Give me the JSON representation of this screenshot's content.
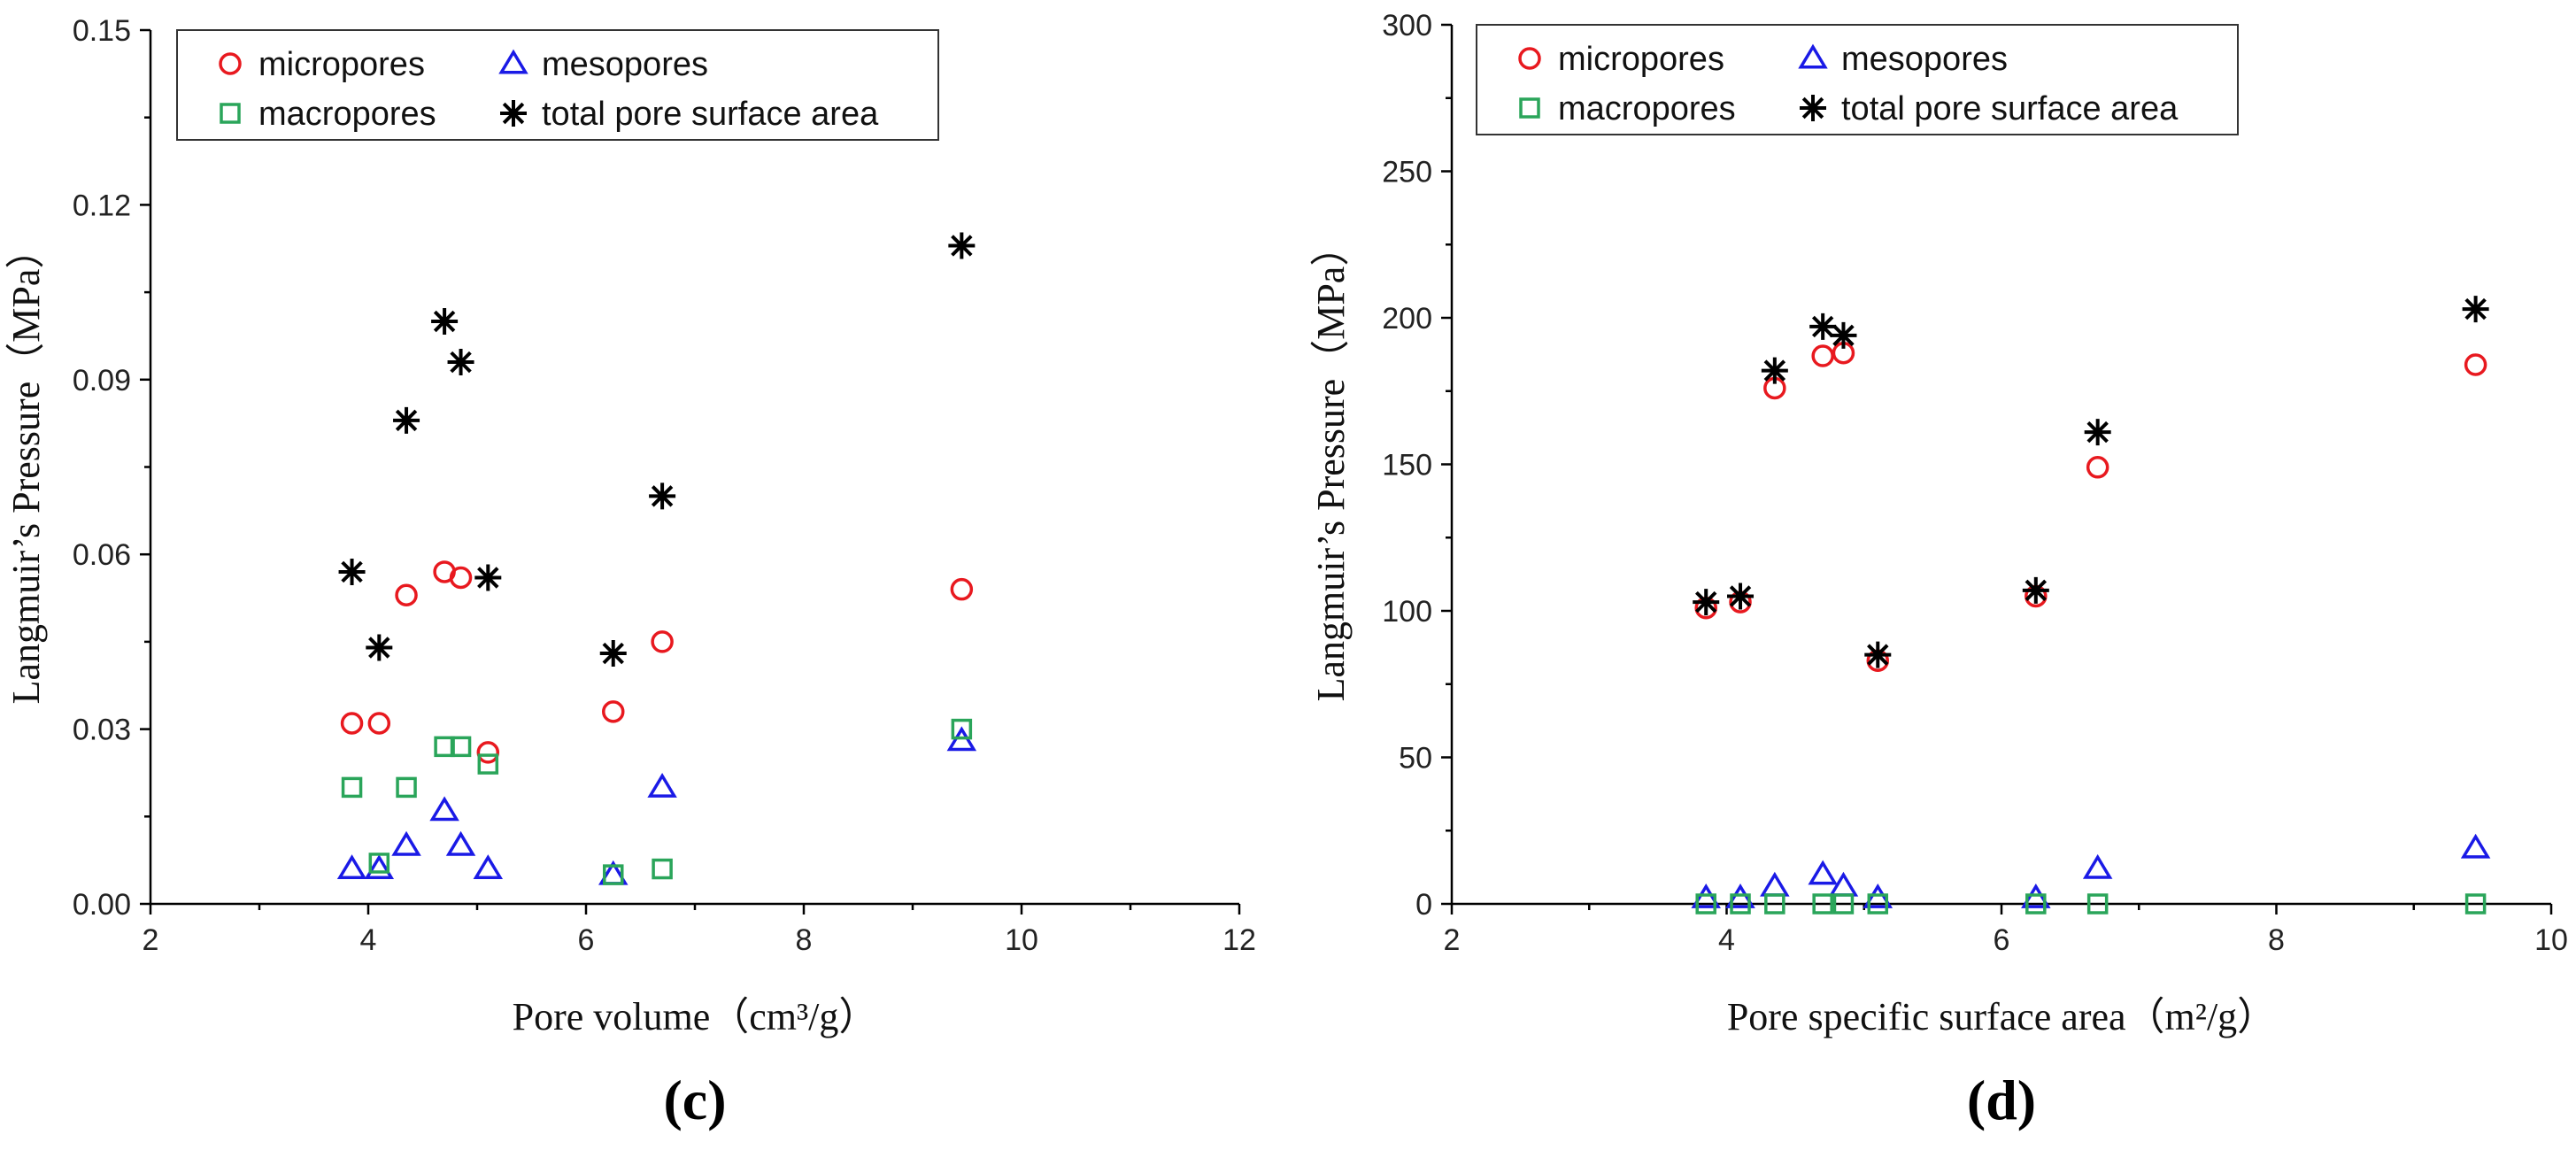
{
  "chart_data": [
    {
      "type": "scatter",
      "panel_label": "(c)",
      "xlabel": "Pore volume（cm³/g）",
      "ylabel": "Langmuir’s Pressure（MPa）",
      "xlim": [
        2,
        12
      ],
      "ylim": [
        0,
        0.15
      ],
      "xticks": [
        2,
        4,
        6,
        8,
        10,
        12
      ],
      "yticks": [
        0.0,
        0.03,
        0.06,
        0.09,
        0.12,
        0.15
      ],
      "xtick_labels": [
        "2",
        "4",
        "6",
        "8",
        "10",
        "12"
      ],
      "ytick_labels": [
        "0.00",
        "0.03",
        "0.06",
        "0.09",
        "0.12",
        "0.15"
      ],
      "legend_position": "top-left",
      "series": [
        {
          "name": "micropores",
          "marker": "circle",
          "color": "#e8191f",
          "x": [
            3.85,
            4.1,
            4.35,
            4.7,
            4.85,
            5.1,
            6.25,
            6.7,
            9.45
          ],
          "y": [
            0.031,
            0.031,
            0.053,
            0.057,
            0.056,
            0.026,
            0.033,
            0.045,
            0.054
          ]
        },
        {
          "name": "mesopores",
          "marker": "triangle",
          "color": "#1a1ae6",
          "x": [
            3.85,
            4.1,
            4.35,
            4.7,
            4.85,
            5.1,
            6.25,
            6.7,
            9.45
          ],
          "y": [
            0.006,
            0.006,
            0.01,
            0.016,
            0.01,
            0.006,
            0.005,
            0.02,
            0.028
          ]
        },
        {
          "name": "macropores",
          "marker": "square",
          "color": "#2aa55a",
          "x": [
            3.85,
            4.1,
            4.35,
            4.7,
            4.85,
            5.1,
            6.25,
            6.7,
            9.45
          ],
          "y": [
            0.02,
            0.007,
            0.02,
            0.027,
            0.027,
            0.024,
            0.005,
            0.006,
            0.03
          ]
        },
        {
          "name": "total pore surface area",
          "marker": "asterisk",
          "color": "#000000",
          "x": [
            3.85,
            4.1,
            4.35,
            4.7,
            4.85,
            5.1,
            6.25,
            6.7,
            9.45
          ],
          "y": [
            0.057,
            0.044,
            0.083,
            0.1,
            0.093,
            0.056,
            0.043,
            0.07,
            0.113
          ]
        }
      ]
    },
    {
      "type": "scatter",
      "panel_label": "(d)",
      "xlabel": "Pore specific surface area（m²/g）",
      "ylabel": "Langmuir’s Pressure（MPa）",
      "xlim": [
        2,
        10
      ],
      "ylim": [
        0,
        300
      ],
      "xticks": [
        2,
        4,
        6,
        8,
        10
      ],
      "yticks": [
        0,
        50,
        100,
        150,
        200,
        250,
        300
      ],
      "xtick_labels": [
        "2",
        "4",
        "6",
        "8",
        "10"
      ],
      "ytick_labels": [
        "0",
        "50",
        "100",
        "150",
        "200",
        "250",
        "300"
      ],
      "legend_position": "top-left",
      "series": [
        {
          "name": "micropores",
          "marker": "circle",
          "color": "#e8191f",
          "x": [
            3.85,
            4.1,
            4.35,
            4.7,
            4.85,
            5.1,
            6.25,
            6.7,
            9.45
          ],
          "y": [
            101,
            103,
            176,
            187,
            188,
            83,
            105,
            149,
            184
          ]
        },
        {
          "name": "mesopores",
          "marker": "triangle",
          "color": "#1a1ae6",
          "x": [
            3.85,
            4.1,
            4.35,
            4.7,
            4.85,
            5.1,
            6.25,
            6.7,
            9.45
          ],
          "y": [
            2,
            2,
            6,
            10,
            6,
            2,
            2,
            12,
            19
          ]
        },
        {
          "name": "macropores",
          "marker": "square",
          "color": "#2aa55a",
          "x": [
            3.85,
            4.1,
            4.35,
            4.7,
            4.85,
            5.1,
            6.25,
            6.7,
            9.45
          ],
          "y": [
            0,
            0,
            0,
            0,
            0,
            0,
            0,
            0,
            0
          ]
        },
        {
          "name": "total pore surface area",
          "marker": "asterisk",
          "color": "#000000",
          "x": [
            3.85,
            4.1,
            4.35,
            4.7,
            4.85,
            5.1,
            6.25,
            6.7,
            9.45
          ],
          "y": [
            103,
            105,
            182,
            197,
            194,
            85,
            107,
            161,
            203
          ]
        }
      ]
    }
  ]
}
